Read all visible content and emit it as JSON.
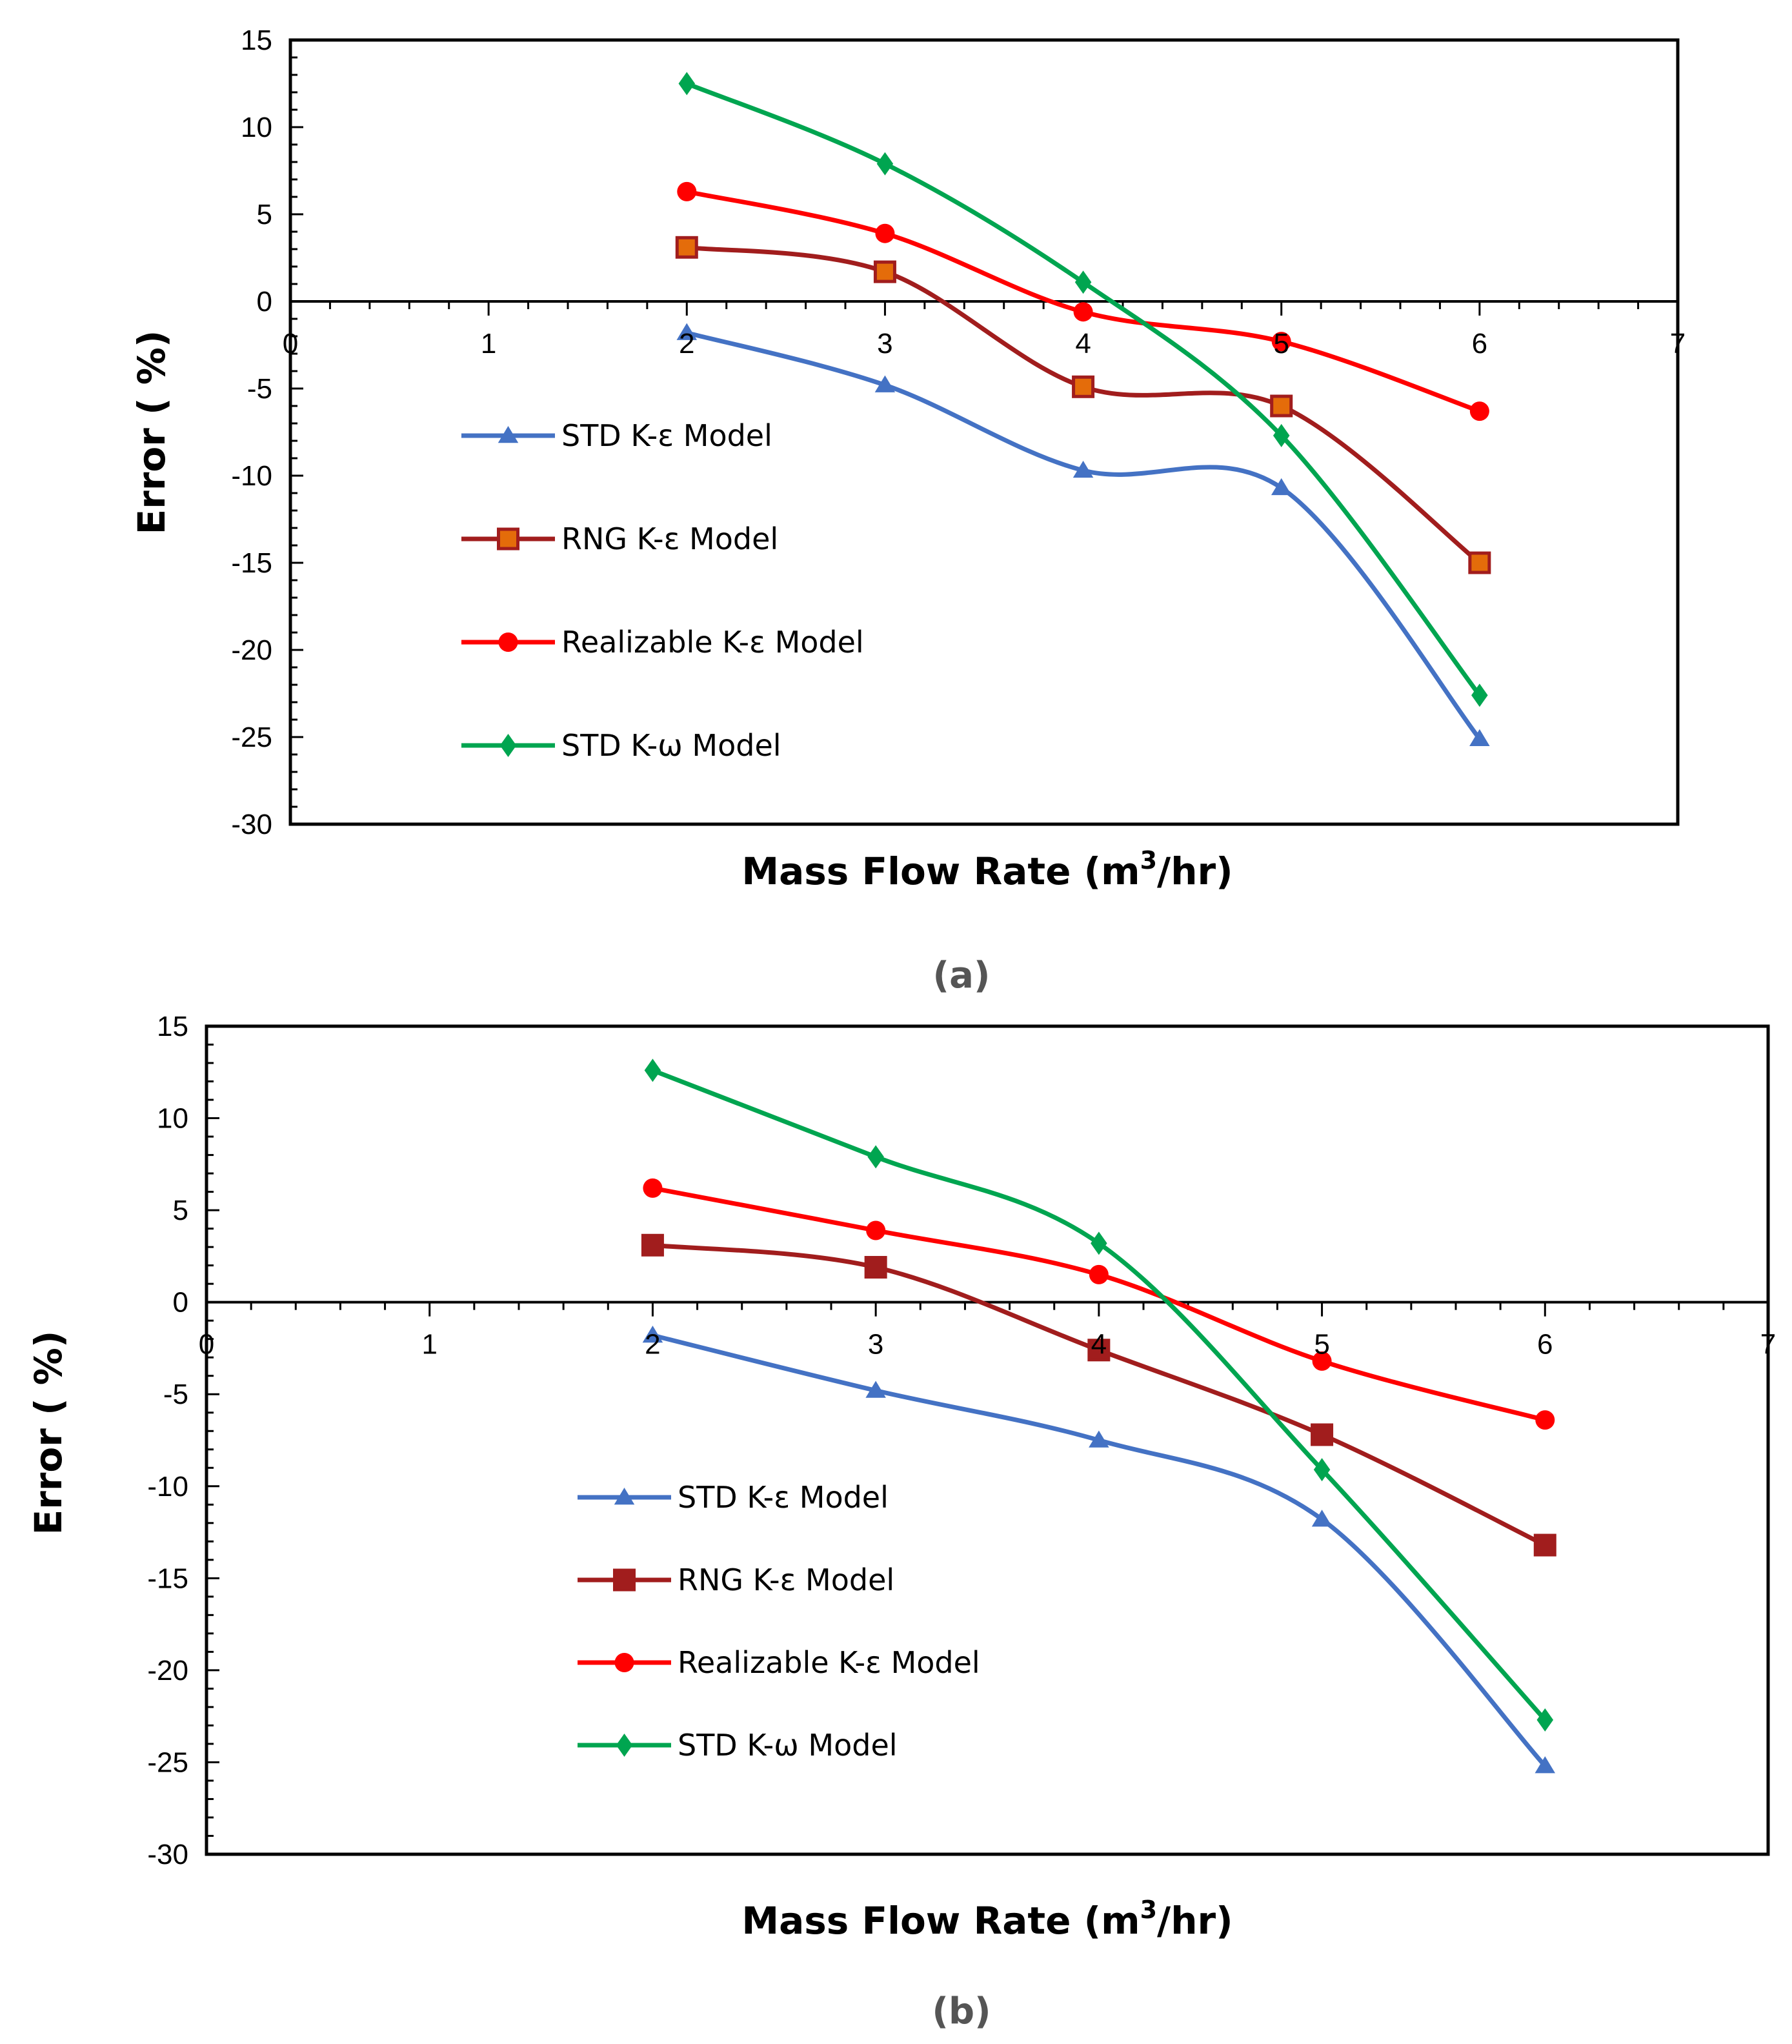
{
  "chart_data": [
    {
      "type": "line",
      "caption": "(a)",
      "xlabel_main": "Mass Flow Rate (m",
      "xlabel_sup": "3",
      "xlabel_end": "/hr)",
      "ylabel": "Error ( %)",
      "xlim": [
        0,
        7
      ],
      "ylim": [
        -30,
        15
      ],
      "xticks": [
        0,
        1,
        2,
        3,
        4,
        5,
        6,
        7
      ],
      "yticks": [
        15,
        10,
        5,
        0,
        -5,
        -10,
        -15,
        -20,
        -25,
        -30
      ],
      "legend_position": "middle-left",
      "series": [
        {
          "name": "STD K-ε Model",
          "color": "#4472C4",
          "marker": "triangle",
          "x": [
            2,
            3,
            4,
            5,
            6
          ],
          "y": [
            -1.8,
            -4.8,
            -9.7,
            -10.7,
            -25.1
          ]
        },
        {
          "name": "RNG K-ε Model",
          "color": "#A11D1D",
          "marker": "square",
          "marker_fill": "#E46C0A",
          "x": [
            2,
            3,
            4,
            5,
            6
          ],
          "y": [
            3.1,
            1.7,
            -4.9,
            -6.0,
            -15.0
          ]
        },
        {
          "name": "Realizable K-ε Model",
          "color": "#FF0000",
          "marker": "circle",
          "x": [
            2,
            3,
            4,
            5,
            6
          ],
          "y": [
            6.3,
            3.9,
            -0.6,
            -2.3,
            -6.3
          ]
        },
        {
          "name": "STD K-ω Model",
          "color": "#00A550",
          "marker": "diamond",
          "x": [
            2,
            3,
            4,
            5,
            6
          ],
          "y": [
            12.5,
            7.9,
            1.1,
            -7.7,
            -22.6
          ]
        }
      ]
    },
    {
      "type": "line",
      "caption": "(b)",
      "xlabel_main": "Mass Flow Rate (m",
      "xlabel_sup": "3",
      "xlabel_end": "/hr)",
      "ylabel": "Error ( %)",
      "xlim": [
        0,
        7
      ],
      "ylim": [
        -30,
        15
      ],
      "xticks": [
        0,
        1,
        2,
        3,
        4,
        5,
        6,
        7
      ],
      "yticks": [
        15,
        10,
        5,
        0,
        -5,
        -10,
        -15,
        -20,
        -25,
        -30
      ],
      "legend_position": "middle-left",
      "series": [
        {
          "name": "STD K-ε Model",
          "color": "#4472C4",
          "marker": "triangle",
          "x": [
            2,
            3,
            4,
            5,
            6
          ],
          "y": [
            -1.8,
            -4.8,
            -7.5,
            -11.8,
            -25.2
          ]
        },
        {
          "name": "RNG K-ε Model",
          "color": "#A11D1D",
          "marker": "square",
          "x": [
            2,
            3,
            4,
            5,
            6
          ],
          "y": [
            3.1,
            1.9,
            -2.6,
            -7.2,
            -13.2
          ]
        },
        {
          "name": "Realizable K-ε Model",
          "color": "#FF0000",
          "marker": "circle",
          "x": [
            2,
            3,
            4,
            5,
            6
          ],
          "y": [
            6.2,
            3.9,
            1.5,
            -3.2,
            -6.4
          ]
        },
        {
          "name": "STD K-ω Model",
          "color": "#00A550",
          "marker": "diamond",
          "x": [
            2,
            3,
            4,
            5,
            6
          ],
          "y": [
            12.6,
            7.9,
            3.2,
            -9.1,
            -22.7
          ]
        }
      ]
    }
  ]
}
